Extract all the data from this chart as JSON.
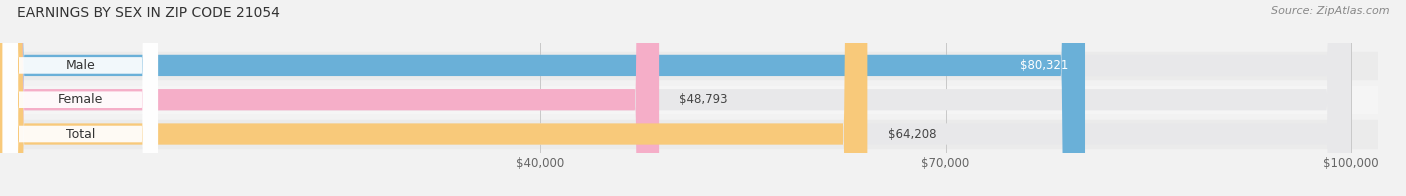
{
  "title": "EARNINGS BY SEX IN ZIP CODE 21054",
  "source": "Source: ZipAtlas.com",
  "categories": [
    "Male",
    "Female",
    "Total"
  ],
  "values": [
    80321,
    48793,
    64208
  ],
  "bar_colors": [
    "#6ab0d8",
    "#f5aec8",
    "#f8c97a"
  ],
  "bar_bg_color": "#e8e8ea",
  "value_labels": [
    "$80,321",
    "$48,793",
    "$64,208"
  ],
  "value_inside": [
    true,
    false,
    false
  ],
  "xmin": 0,
  "xmax": 100000,
  "xticks": [
    40000,
    70000,
    100000
  ],
  "xtick_labels": [
    "$40,000",
    "$70,000",
    "$100,000"
  ],
  "title_fontsize": 10,
  "label_fontsize": 9,
  "value_fontsize": 8.5,
  "source_fontsize": 8,
  "background_color": "#f2f2f2"
}
